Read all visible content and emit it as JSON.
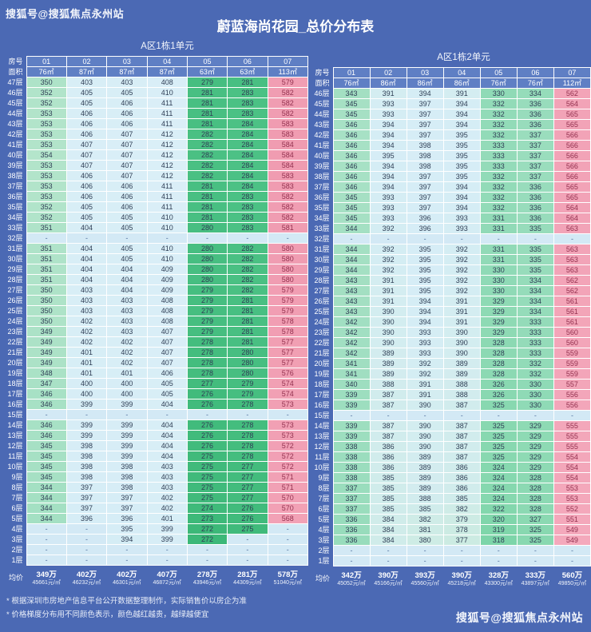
{
  "title": "蔚蓝海尚花园_总价分布表",
  "watermark_top": "搜狐号@搜狐焦点永州站",
  "watermark_bottom": "搜狐号@搜狐焦点永州站",
  "footnotes": [
    "* 根据深圳市房地产信息平台公开数据整理制作，实际销售价以房企为准",
    "* 价格梯度分布用不同颜色表示，颜色越红越贵，越绿越便宜"
  ],
  "colors": {
    "background": "#4b69b4",
    "header_cell": "#5f7fc4",
    "grid_border": "#ffffff",
    "scale_low_green": "#3cb878",
    "scale_mid_paleblue": "#d8edf6",
    "scale_high_pink": "#f19cb1",
    "empty_cell": "#d3e9f5",
    "value_text": "#2f3e55",
    "pink_value_text": "#93314f"
  },
  "chart_data": [
    {
      "type": "table",
      "title": "A区1栋1单元",
      "room_label": "房号",
      "area_label": "面积",
      "avg_label": "均价",
      "rooms": [
        "01",
        "02",
        "03",
        "04",
        "05",
        "06",
        "07"
      ],
      "areas": [
        "76㎡",
        "87㎡",
        "87㎡",
        "87㎡",
        "63㎡",
        "63㎡",
        "113㎡"
      ],
      "rows": [
        [
          "47层",
          [
            "350",
            "403",
            "403",
            "408",
            "279",
            "281",
            "579"
          ]
        ],
        [
          "46层",
          [
            "352",
            "405",
            "405",
            "410",
            "281",
            "283",
            "582"
          ]
        ],
        [
          "45层",
          [
            "352",
            "405",
            "406",
            "411",
            "281",
            "283",
            "582"
          ]
        ],
        [
          "44层",
          [
            "353",
            "406",
            "406",
            "411",
            "281",
            "283",
            "582"
          ]
        ],
        [
          "43层",
          [
            "353",
            "406",
            "406",
            "411",
            "281",
            "284",
            "583"
          ]
        ],
        [
          "42层",
          [
            "353",
            "406",
            "407",
            "412",
            "282",
            "284",
            "583"
          ]
        ],
        [
          "41层",
          [
            "353",
            "407",
            "407",
            "412",
            "282",
            "284",
            "584"
          ]
        ],
        [
          "40层",
          [
            "354",
            "407",
            "407",
            "412",
            "282",
            "284",
            "584"
          ]
        ],
        [
          "39层",
          [
            "353",
            "407",
            "407",
            "412",
            "282",
            "284",
            "584"
          ]
        ],
        [
          "38层",
          [
            "353",
            "406",
            "407",
            "412",
            "282",
            "284",
            "583"
          ]
        ],
        [
          "37层",
          [
            "353",
            "406",
            "406",
            "411",
            "281",
            "284",
            "583"
          ]
        ],
        [
          "36层",
          [
            "353",
            "406",
            "406",
            "411",
            "281",
            "283",
            "582"
          ]
        ],
        [
          "35层",
          [
            "352",
            "405",
            "406",
            "411",
            "281",
            "283",
            "582"
          ]
        ],
        [
          "34层",
          [
            "352",
            "405",
            "405",
            "410",
            "281",
            "283",
            "582"
          ]
        ],
        [
          "33层",
          [
            "351",
            "404",
            "405",
            "410",
            "280",
            "283",
            "581"
          ]
        ],
        [
          "32层",
          [
            "-",
            "-",
            "-",
            "-",
            "-",
            "-",
            "-"
          ]
        ],
        [
          "31层",
          [
            "351",
            "404",
            "405",
            "410",
            "280",
            "282",
            "580"
          ]
        ],
        [
          "30层",
          [
            "351",
            "404",
            "405",
            "410",
            "280",
            "282",
            "580"
          ]
        ],
        [
          "29层",
          [
            "351",
            "404",
            "404",
            "409",
            "280",
            "282",
            "580"
          ]
        ],
        [
          "28层",
          [
            "351",
            "404",
            "404",
            "409",
            "280",
            "282",
            "580"
          ]
        ],
        [
          "27层",
          [
            "350",
            "403",
            "404",
            "409",
            "279",
            "282",
            "579"
          ]
        ],
        [
          "26层",
          [
            "350",
            "403",
            "403",
            "408",
            "279",
            "281",
            "579"
          ]
        ],
        [
          "25层",
          [
            "350",
            "403",
            "403",
            "408",
            "279",
            "281",
            "579"
          ]
        ],
        [
          "24层",
          [
            "350",
            "402",
            "403",
            "408",
            "279",
            "281",
            "578"
          ]
        ],
        [
          "23层",
          [
            "349",
            "402",
            "403",
            "407",
            "279",
            "281",
            "578"
          ]
        ],
        [
          "22层",
          [
            "349",
            "402",
            "402",
            "407",
            "278",
            "281",
            "577"
          ]
        ],
        [
          "21层",
          [
            "349",
            "401",
            "402",
            "407",
            "278",
            "280",
            "577"
          ]
        ],
        [
          "20层",
          [
            "349",
            "401",
            "402",
            "407",
            "278",
            "280",
            "577"
          ]
        ],
        [
          "19层",
          [
            "348",
            "401",
            "401",
            "406",
            "278",
            "280",
            "576"
          ]
        ],
        [
          "18层",
          [
            "347",
            "400",
            "400",
            "405",
            "277",
            "279",
            "574"
          ]
        ],
        [
          "17层",
          [
            "346",
            "400",
            "400",
            "405",
            "276",
            "279",
            "574"
          ]
        ],
        [
          "16层",
          [
            "346",
            "399",
            "399",
            "404",
            "276",
            "278",
            "573"
          ]
        ],
        [
          "15层",
          [
            "-",
            "-",
            "-",
            "-",
            "-",
            "-",
            "-"
          ]
        ],
        [
          "14层",
          [
            "346",
            "399",
            "399",
            "404",
            "276",
            "278",
            "573"
          ]
        ],
        [
          "13层",
          [
            "346",
            "399",
            "399",
            "404",
            "276",
            "278",
            "573"
          ]
        ],
        [
          "12层",
          [
            "345",
            "398",
            "399",
            "404",
            "276",
            "278",
            "572"
          ]
        ],
        [
          "11层",
          [
            "345",
            "398",
            "399",
            "404",
            "275",
            "278",
            "572"
          ]
        ],
        [
          "10层",
          [
            "345",
            "398",
            "398",
            "403",
            "275",
            "277",
            "572"
          ]
        ],
        [
          "9层",
          [
            "345",
            "398",
            "398",
            "403",
            "275",
            "277",
            "571"
          ]
        ],
        [
          "8层",
          [
            "344",
            "397",
            "398",
            "403",
            "275",
            "277",
            "571"
          ]
        ],
        [
          "7层",
          [
            "344",
            "397",
            "397",
            "402",
            "275",
            "277",
            "570"
          ]
        ],
        [
          "6层",
          [
            "344",
            "397",
            "397",
            "402",
            "274",
            "276",
            "570"
          ]
        ],
        [
          "5层",
          [
            "344",
            "396",
            "396",
            "401",
            "273",
            "276",
            "568"
          ]
        ],
        [
          "4层",
          [
            "-",
            "-",
            "395",
            "399",
            "272",
            "275",
            "-"
          ]
        ],
        [
          "3层",
          [
            "-",
            "-",
            "394",
            "399",
            "272",
            "-",
            "-"
          ]
        ],
        [
          "2层",
          [
            "-",
            "-",
            "-",
            "-",
            "-",
            "-",
            "-"
          ]
        ],
        [
          "1层",
          [
            "-",
            "-",
            "-",
            "-",
            "-",
            "-",
            "-"
          ]
        ]
      ],
      "avg_prices": [
        "349万",
        "402万",
        "402万",
        "407万",
        "278万",
        "281万",
        "578万"
      ],
      "avg_unit_prices": [
        "45661元/㎡",
        "46232元/㎡",
        "46301元/㎡",
        "46872元/㎡",
        "43946元/㎡",
        "44309元/㎡",
        "51040元/㎡"
      ]
    },
    {
      "type": "table",
      "title": "A区1栋2单元",
      "room_label": "房号",
      "area_label": "面积",
      "avg_label": "均价",
      "rooms": [
        "01",
        "02",
        "03",
        "04",
        "05",
        "06",
        "07"
      ],
      "areas": [
        "76㎡",
        "86㎡",
        "86㎡",
        "86㎡",
        "76㎡",
        "76㎡",
        "112㎡"
      ],
      "rows": [
        [
          "46层",
          [
            "343",
            "391",
            "394",
            "391",
            "330",
            "334",
            "562"
          ]
        ],
        [
          "45层",
          [
            "345",
            "393",
            "397",
            "394",
            "332",
            "336",
            "564"
          ]
        ],
        [
          "44层",
          [
            "345",
            "393",
            "397",
            "394",
            "332",
            "336",
            "565"
          ]
        ],
        [
          "43层",
          [
            "346",
            "394",
            "397",
            "394",
            "332",
            "336",
            "565"
          ]
        ],
        [
          "42层",
          [
            "346",
            "394",
            "397",
            "395",
            "332",
            "337",
            "566"
          ]
        ],
        [
          "41层",
          [
            "346",
            "394",
            "398",
            "395",
            "333",
            "337",
            "566"
          ]
        ],
        [
          "40层",
          [
            "346",
            "395",
            "398",
            "395",
            "333",
            "337",
            "566"
          ]
        ],
        [
          "39层",
          [
            "346",
            "394",
            "398",
            "395",
            "333",
            "337",
            "566"
          ]
        ],
        [
          "38层",
          [
            "346",
            "394",
            "397",
            "395",
            "332",
            "337",
            "566"
          ]
        ],
        [
          "37层",
          [
            "346",
            "394",
            "397",
            "394",
            "332",
            "336",
            "565"
          ]
        ],
        [
          "36层",
          [
            "345",
            "393",
            "397",
            "394",
            "332",
            "336",
            "565"
          ]
        ],
        [
          "35层",
          [
            "345",
            "393",
            "397",
            "394",
            "332",
            "336",
            "564"
          ]
        ],
        [
          "34层",
          [
            "345",
            "393",
            "396",
            "393",
            "331",
            "336",
            "564"
          ]
        ],
        [
          "33层",
          [
            "344",
            "392",
            "396",
            "393",
            "331",
            "335",
            "563"
          ]
        ],
        [
          "32层",
          [
            "-",
            "-",
            "-",
            "-",
            "-",
            "-",
            "-"
          ]
        ],
        [
          "31层",
          [
            "344",
            "392",
            "395",
            "392",
            "331",
            "335",
            "563"
          ]
        ],
        [
          "30层",
          [
            "344",
            "392",
            "395",
            "392",
            "331",
            "335",
            "563"
          ]
        ],
        [
          "29层",
          [
            "344",
            "392",
            "395",
            "392",
            "330",
            "335",
            "563"
          ]
        ],
        [
          "28层",
          [
            "343",
            "391",
            "395",
            "392",
            "330",
            "334",
            "562"
          ]
        ],
        [
          "27层",
          [
            "343",
            "391",
            "395",
            "392",
            "330",
            "334",
            "562"
          ]
        ],
        [
          "26层",
          [
            "343",
            "391",
            "394",
            "391",
            "329",
            "334",
            "561"
          ]
        ],
        [
          "25层",
          [
            "343",
            "390",
            "394",
            "391",
            "329",
            "334",
            "561"
          ]
        ],
        [
          "24层",
          [
            "342",
            "390",
            "394",
            "391",
            "329",
            "333",
            "561"
          ]
        ],
        [
          "23层",
          [
            "342",
            "390",
            "393",
            "390",
            "329",
            "333",
            "560"
          ]
        ],
        [
          "22层",
          [
            "342",
            "390",
            "393",
            "390",
            "328",
            "333",
            "560"
          ]
        ],
        [
          "21层",
          [
            "342",
            "389",
            "393",
            "390",
            "328",
            "333",
            "559"
          ]
        ],
        [
          "20层",
          [
            "341",
            "389",
            "392",
            "389",
            "328",
            "332",
            "559"
          ]
        ],
        [
          "19层",
          [
            "341",
            "389",
            "392",
            "389",
            "328",
            "332",
            "559"
          ]
        ],
        [
          "18层",
          [
            "340",
            "388",
            "391",
            "388",
            "326",
            "330",
            "557"
          ]
        ],
        [
          "17层",
          [
            "339",
            "387",
            "391",
            "388",
            "326",
            "330",
            "556"
          ]
        ],
        [
          "16层",
          [
            "339",
            "387",
            "390",
            "387",
            "325",
            "330",
            "556"
          ]
        ],
        [
          "15层",
          [
            "-",
            "-",
            "-",
            "-",
            "-",
            "-",
            "-"
          ]
        ],
        [
          "14层",
          [
            "339",
            "387",
            "390",
            "387",
            "325",
            "329",
            "555"
          ]
        ],
        [
          "13层",
          [
            "339",
            "387",
            "390",
            "387",
            "325",
            "329",
            "555"
          ]
        ],
        [
          "12层",
          [
            "338",
            "386",
            "390",
            "387",
            "325",
            "329",
            "555"
          ]
        ],
        [
          "11层",
          [
            "338",
            "386",
            "389",
            "387",
            "325",
            "329",
            "554"
          ]
        ],
        [
          "10层",
          [
            "338",
            "386",
            "389",
            "386",
            "324",
            "329",
            "554"
          ]
        ],
        [
          "9层",
          [
            "338",
            "385",
            "389",
            "386",
            "324",
            "328",
            "554"
          ]
        ],
        [
          "8层",
          [
            "337",
            "385",
            "389",
            "386",
            "324",
            "328",
            "553"
          ]
        ],
        [
          "7层",
          [
            "337",
            "385",
            "388",
            "385",
            "324",
            "328",
            "553"
          ]
        ],
        [
          "6层",
          [
            "337",
            "385",
            "385",
            "382",
            "322",
            "328",
            "552"
          ]
        ],
        [
          "5层",
          [
            "336",
            "384",
            "382",
            "379",
            "320",
            "327",
            "551"
          ]
        ],
        [
          "4层",
          [
            "336",
            "384",
            "381",
            "378",
            "319",
            "325",
            "549"
          ]
        ],
        [
          "3层",
          [
            "336",
            "384",
            "380",
            "377",
            "318",
            "325",
            "549"
          ]
        ],
        [
          "2层",
          [
            "-",
            "-",
            "-",
            "-",
            "-",
            "-",
            "-"
          ]
        ],
        [
          "1层",
          [
            "-",
            "-",
            "-",
            "-",
            "-",
            "-",
            "-"
          ]
        ]
      ],
      "avg_prices": [
        "342万",
        "390万",
        "393万",
        "390万",
        "328万",
        "333万",
        "560万"
      ],
      "avg_unit_prices": [
        "45052元/㎡",
        "45166元/㎡",
        "45560元/㎡",
        "45218元/㎡",
        "43300元/㎡",
        "43897元/㎡",
        "49850元/㎡"
      ]
    }
  ]
}
